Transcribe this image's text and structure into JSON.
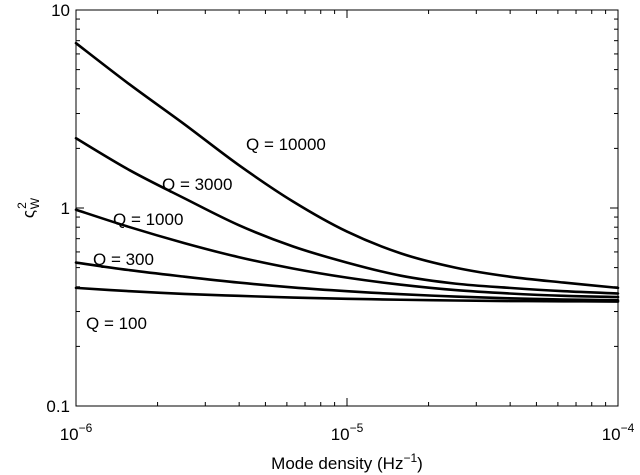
{
  "chart_data": {
    "type": "line",
    "title": "",
    "xlabel": {
      "prefix": "Mode density (Hz",
      "sup": "−1",
      "suffix": ")"
    },
    "ylabel": {
      "base": "ς",
      "sup": "2",
      "sub": "W"
    },
    "x_scale": "log",
    "y_scale": "log",
    "xlim": [
      1e-06,
      0.0001
    ],
    "ylim": [
      0.1,
      10
    ],
    "grid": false,
    "legend": "none",
    "x_ticks": [
      {
        "value": 1e-06,
        "base": "10",
        "exp": "−6"
      },
      {
        "value": 1e-05,
        "base": "10",
        "exp": "−5"
      },
      {
        "value": 0.0001,
        "base": "10",
        "exp": "−4"
      }
    ],
    "y_ticks": [
      {
        "value": 0.1,
        "label": "0.1"
      },
      {
        "value": 1,
        "label": "1"
      },
      {
        "value": 10,
        "label": "10"
      }
    ],
    "x": [
      1e-06,
      1.58e-06,
      2.51e-06,
      3.98e-06,
      6.31e-06,
      1e-05,
      1.58e-05,
      2.51e-05,
      3.98e-05,
      6.31e-05,
      0.0001
    ],
    "series": [
      {
        "name": "Q = 10000",
        "values": [
          6.8,
          4.2,
          2.65,
          1.65,
          1.08,
          0.76,
          0.59,
          0.5,
          0.45,
          0.42,
          0.395
        ]
      },
      {
        "name": "Q = 3000",
        "values": [
          2.25,
          1.55,
          1.12,
          0.82,
          0.64,
          0.53,
          0.455,
          0.415,
          0.395,
          0.38,
          0.37
        ]
      },
      {
        "name": "Q = 1000",
        "values": [
          0.98,
          0.8,
          0.665,
          0.565,
          0.495,
          0.445,
          0.41,
          0.385,
          0.37,
          0.36,
          0.355
        ]
      },
      {
        "name": "Q = 300",
        "values": [
          0.53,
          0.485,
          0.45,
          0.42,
          0.397,
          0.38,
          0.367,
          0.357,
          0.35,
          0.345,
          0.342
        ]
      },
      {
        "name": "Q = 100",
        "values": [
          0.395,
          0.38,
          0.368,
          0.36,
          0.353,
          0.348,
          0.344,
          0.341,
          0.339,
          0.338,
          0.337
        ]
      }
    ]
  }
}
